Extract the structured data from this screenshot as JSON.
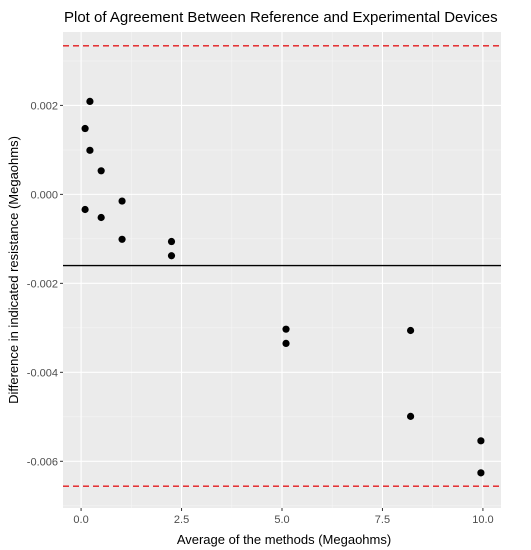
{
  "chart_data": {
    "type": "scatter",
    "title": "Plot of Agreement Between Reference and Experimental Devices",
    "xlabel": "Average of the methods (Megaohms)",
    "ylabel": "Difference in indicated resistance (Megaohms)",
    "xlim": [
      -0.45,
      10.45
    ],
    "ylim": [
      -0.00705,
      0.00365
    ],
    "x_ticks": [
      0,
      2.5,
      5,
      7.5,
      10
    ],
    "x_tick_labels": [
      "0.0",
      "2.5",
      "5.0",
      "7.5",
      "10.0"
    ],
    "y_ticks": [
      -0.006,
      -0.004,
      -0.002,
      0,
      0.002
    ],
    "y_tick_labels": [
      "-0.006",
      "-0.004",
      "-0.002",
      "0.000",
      "0.002"
    ],
    "grid": true,
    "points": [
      {
        "x": 0.1,
        "y": 0.00148
      },
      {
        "x": 0.1,
        "y": -0.00034
      },
      {
        "x": 0.22,
        "y": 0.00209
      },
      {
        "x": 0.22,
        "y": 0.00099
      },
      {
        "x": 0.5,
        "y": 0.00053
      },
      {
        "x": 0.5,
        "y": -0.00052
      },
      {
        "x": 1.02,
        "y": -0.00015
      },
      {
        "x": 1.02,
        "y": -0.00101
      },
      {
        "x": 2.25,
        "y": -0.00106
      },
      {
        "x": 2.25,
        "y": -0.00138
      },
      {
        "x": 5.1,
        "y": -0.00303
      },
      {
        "x": 5.1,
        "y": -0.00335
      },
      {
        "x": 8.2,
        "y": -0.00306
      },
      {
        "x": 8.2,
        "y": -0.00499
      },
      {
        "x": 9.95,
        "y": -0.00554
      },
      {
        "x": 9.95,
        "y": -0.00626
      }
    ],
    "reference_lines": [
      {
        "y": -0.0016,
        "style": "solid",
        "color": "#000000"
      },
      {
        "y": 0.00334,
        "style": "dashed",
        "color": "#e41a1c"
      },
      {
        "y": -0.00656,
        "style": "dashed",
        "color": "#e41a1c"
      }
    ],
    "colors": {
      "panel_background": "#ebebeb",
      "grid_major": "#ffffff",
      "grid_minor": "#f5f5f5",
      "points": "#000000"
    }
  }
}
